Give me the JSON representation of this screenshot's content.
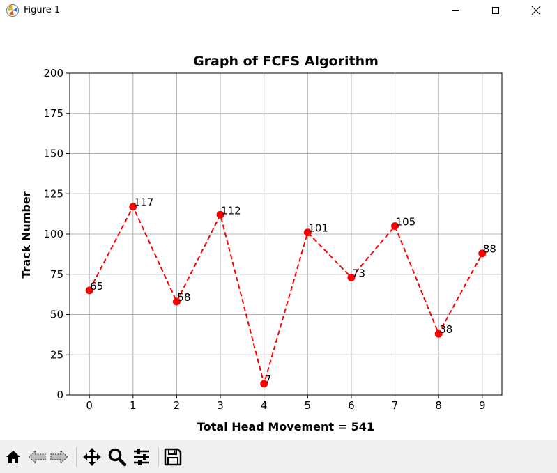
{
  "window": {
    "title": "Figure 1",
    "controls": [
      "minimize",
      "maximize",
      "close"
    ]
  },
  "toolbar": {
    "buttons": [
      {
        "name": "home-button",
        "icon": "home-icon"
      },
      {
        "name": "back-button",
        "icon": "back-arrow-icon"
      },
      {
        "name": "forward-button",
        "icon": "forward-arrow-icon"
      },
      {
        "name": "pan-button",
        "icon": "move-icon"
      },
      {
        "name": "zoom-button",
        "icon": "magnifier-icon"
      },
      {
        "name": "configure-subplots-button",
        "icon": "sliders-icon"
      },
      {
        "name": "save-button",
        "icon": "floppy-disk-icon"
      }
    ]
  },
  "chart_data": {
    "type": "line",
    "title": "Graph of FCFS Algorithm",
    "xlabel": "Total Head Movement = 541",
    "ylabel": "Track Number",
    "x": [
      0,
      1,
      2,
      3,
      4,
      5,
      6,
      7,
      8,
      9
    ],
    "values": [
      65,
      117,
      58,
      112,
      7,
      101,
      73,
      105,
      38,
      88
    ],
    "point_labels": [
      "65",
      "117",
      "58",
      "112",
      "7",
      "101",
      "73",
      "105",
      "38",
      "88"
    ],
    "xticks": [
      "0",
      "1",
      "2",
      "3",
      "4",
      "5",
      "6",
      "7",
      "8",
      "9"
    ],
    "yticks": [
      "0",
      "25",
      "50",
      "75",
      "100",
      "125",
      "150",
      "175",
      "200"
    ],
    "xlim": [
      -0.45,
      9.45
    ],
    "ylim": [
      0,
      200
    ],
    "grid": true,
    "line_style": "dashed",
    "marker": "circle",
    "color": "#ff0000"
  }
}
